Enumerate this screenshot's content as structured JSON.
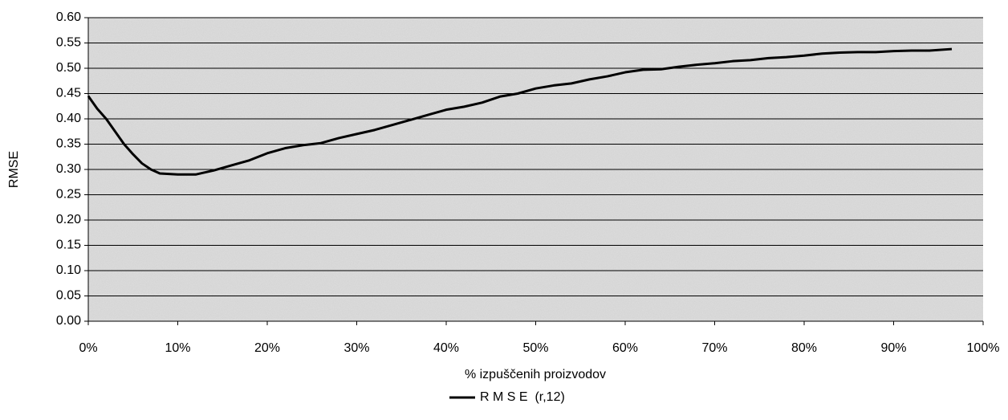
{
  "chart_data": {
    "type": "line",
    "x_label": "% izpuščenih proizvodov",
    "y_label": "RMSE",
    "x": [
      0,
      1,
      2,
      3,
      4,
      5,
      6,
      7,
      8,
      10,
      12,
      14,
      16,
      18,
      20,
      22,
      24,
      26,
      28,
      30,
      32,
      34,
      36,
      38,
      40,
      42,
      44,
      46,
      48,
      50,
      52,
      54,
      56,
      58,
      60,
      62,
      64,
      66,
      68,
      70,
      72,
      74,
      76,
      78,
      80,
      82,
      84,
      86,
      88,
      90,
      92,
      94,
      96.5
    ],
    "series": [
      {
        "name": "R M S E  (r,12)",
        "color": "#000000",
        "values": [
          0.445,
          0.42,
          0.4,
          0.375,
          0.35,
          0.33,
          0.312,
          0.3,
          0.292,
          0.29,
          0.29,
          0.298,
          0.308,
          0.318,
          0.332,
          0.342,
          0.348,
          0.352,
          0.362,
          0.37,
          0.378,
          0.388,
          0.398,
          0.408,
          0.418,
          0.424,
          0.432,
          0.444,
          0.45,
          0.46,
          0.466,
          0.47,
          0.478,
          0.484,
          0.492,
          0.497,
          0.498,
          0.503,
          0.507,
          0.51,
          0.514,
          0.516,
          0.52,
          0.522,
          0.525,
          0.529,
          0.531,
          0.532,
          0.532,
          0.534,
          0.535,
          0.535,
          0.538
        ]
      }
    ],
    "xlim": [
      0,
      100
    ],
    "xticks": [
      {
        "value": 0,
        "label": "0%"
      },
      {
        "value": 10,
        "label": "10%"
      },
      {
        "value": 20,
        "label": "20%"
      },
      {
        "value": 30,
        "label": "30%"
      },
      {
        "value": 40,
        "label": "40%"
      },
      {
        "value": 50,
        "label": "50%"
      },
      {
        "value": 60,
        "label": "60%"
      },
      {
        "value": 70,
        "label": "70%"
      },
      {
        "value": 80,
        "label": "80%"
      },
      {
        "value": 90,
        "label": "90%"
      },
      {
        "value": 100,
        "label": "100%"
      }
    ],
    "ylim": [
      0,
      0.6
    ],
    "yticks": [
      {
        "value": 0,
        "label": "0.00"
      },
      {
        "value": 0.05,
        "label": "0.05"
      },
      {
        "value": 0.1,
        "label": "0.10"
      },
      {
        "value": 0.15,
        "label": "0.15"
      },
      {
        "value": 0.2,
        "label": "0.20"
      },
      {
        "value": 0.25,
        "label": "0.25"
      },
      {
        "value": 0.3,
        "label": "0.30"
      },
      {
        "value": 0.35,
        "label": "0.35"
      },
      {
        "value": 0.4,
        "label": "0.40"
      },
      {
        "value": 0.45,
        "label": "0.45"
      },
      {
        "value": 0.5,
        "label": "0.50"
      },
      {
        "value": 0.55,
        "label": "0.55"
      },
      {
        "value": 0.6,
        "label": "0.60"
      }
    ],
    "grid": true
  }
}
